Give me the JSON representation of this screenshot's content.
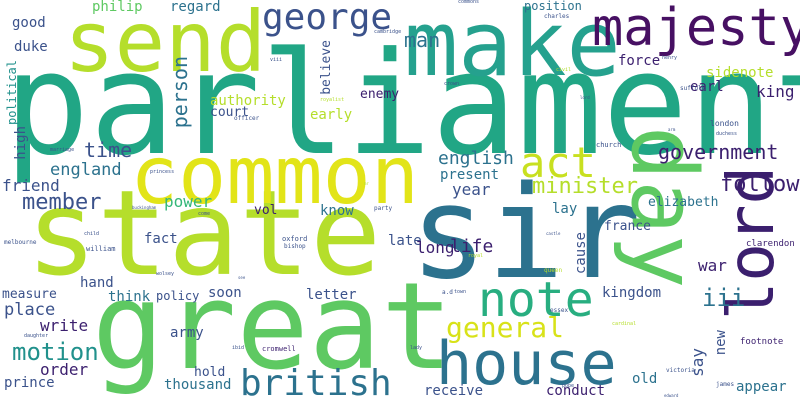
{
  "words": {
    "parliament": "parliament",
    "sir": "sir",
    "state": "state",
    "great": "great",
    "common": "common",
    "day": "day",
    "make": "make",
    "send": "send",
    "majesty": "majesty",
    "lord": "lord",
    "house": "house",
    "note": "note",
    "british": "british",
    "act": "act",
    "general": "general",
    "george": "george",
    "government": "government",
    "minister": "minister",
    "member": "member",
    "follow": "follow",
    "motion": "motion",
    "english": "english",
    "iii": "iii",
    "time": "time",
    "england": "england",
    "person": "person",
    "man": "man",
    "year": "year",
    "friend": "friend",
    "power": "power",
    "duke": "duke",
    "good": "good",
    "philip": "philip",
    "regard": "regard",
    "position": "position",
    "sidenote": "sidenote",
    "earl": "earl",
    "force": "force",
    "king": "king",
    "authority": "authority",
    "court": "court",
    "enemy": "enemy",
    "early": "early",
    "believe": "believe",
    "political": "political",
    "high": "high",
    "present": "present",
    "know": "know",
    "vol": "vol",
    "lay": "lay",
    "elizabeth": "elizabeth",
    "france": "france",
    "fact": "fact",
    "late": "late",
    "life": "life",
    "long": "long",
    "cause": "cause",
    "war": "war",
    "kingdom": "kingdom",
    "place": "place",
    "measure": "measure",
    "hand": "hand",
    "think": "think",
    "policy": "policy",
    "soon": "soon",
    "letter": "letter",
    "write": "write",
    "order": "order",
    "army": "army",
    "prince": "prince",
    "thousand": "thousand",
    "hold": "hold",
    "receive": "receive",
    "conduct": "conduct",
    "appear": "appear",
    "old": "old",
    "say": "say",
    "new": "new",
    "footnote": "footnote",
    "clarendon": "clarendon",
    "london": "london",
    "suffolk": "suffolk",
    "church": "church",
    "cromwell": "cromwell",
    "william": "william",
    "oxford": "oxford",
    "bishop": "bishop",
    "queen": "queen",
    "essex": "essex",
    "party": "party",
    "charles": "charles",
    "commons": "commons",
    "victoria": "victoria",
    "melbourne": "melbourne",
    "officer": "officer",
    "royalist": "royalist",
    "marriage": "marriage",
    "princess": "princess",
    "daughter": "daughter",
    "lady": "lady",
    "james": "james",
    "child": "child",
    "ad": "a.d",
    "duchess": "duchess",
    "cardinal": "cardinal",
    "pope": "pope",
    "town": "town",
    "wolsey": "wolsey",
    "cambridge": "cambridge",
    "viii": "viii",
    "come": "come",
    "henry": "henry",
    "civil": "civil",
    "crown": "crown",
    "ibid": "ibid",
    "buckingham": "buckingham",
    "royal": "royal",
    "castle": "castle",
    "edward": "edward",
    "lord2": "lord",
    "arm": "arm",
    "see": "see",
    "mr": "mr"
  },
  "palette": {
    "dark_purple": "#440154",
    "indigo": "#3b528b",
    "blue": "#31688e",
    "teal": "#21918c",
    "green": "#35b779",
    "light_green": "#6ece58",
    "lime": "#b5de2b",
    "yellow": "#e2e418"
  }
}
